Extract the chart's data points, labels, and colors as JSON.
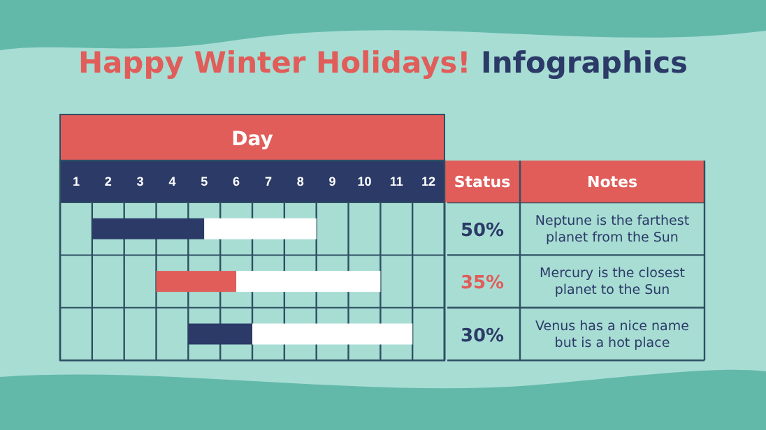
{
  "chart_data": {
    "type": "bar",
    "orientation": "horizontal",
    "title": "Happy Winter Holidays!",
    "subtitle": "Infographics",
    "xlabel": "Day",
    "categories": [
      null,
      null,
      null
    ],
    "series": [
      {
        "colors": [
          "#2b3a67",
          "#e05d5a",
          "#2b3a67"
        ],
        "base": [
          1,
          3,
          4
        ],
        "values": [
          3.5,
          2.5,
          2
        ]
      },
      {
        "color": "#ffffff",
        "base": [
          4.5,
          5.5,
          6
        ],
        "values": [
          3.5,
          4.5,
          5
        ]
      }
    ],
    "xlim": [
      0,
      12
    ],
    "xticks": [
      {
        "value": 0,
        "label": null
      },
      {
        "value": 0.5,
        "label": "1"
      },
      {
        "value": 1,
        "label": null
      },
      {
        "value": 1.5,
        "label": "2"
      },
      {
        "value": 2,
        "label": null
      },
      {
        "value": 2.5,
        "label": "3"
      },
      {
        "value": 3,
        "label": null
      },
      {
        "value": 3.5,
        "label": "4"
      },
      {
        "value": 4,
        "label": null
      },
      {
        "value": 4.5,
        "label": "5"
      },
      {
        "value": 5,
        "label": null
      },
      {
        "value": 5.5,
        "label": "6"
      },
      {
        "value": 6,
        "label": null
      },
      {
        "value": 6.5,
        "label": "7"
      },
      {
        "value": 7,
        "label": null
      },
      {
        "value": 7.5,
        "label": "8"
      },
      {
        "value": 8,
        "label": null
      },
      {
        "value": 8.5,
        "label": "9"
      },
      {
        "value": 9,
        "label": null
      },
      {
        "value": 9.5,
        "label": "10"
      },
      {
        "value": 10,
        "label": null
      },
      {
        "value": 10.5,
        "label": "11"
      },
      {
        "value": 11,
        "label": null
      },
      {
        "value": 11.5,
        "label": "12"
      },
      {
        "value": 12,
        "label": null
      }
    ],
    "grid": "x",
    "annotations": [
      "Status",
      "Notes",
      "50%",
      "Neptune is the farthest planet from the Sun",
      "35%",
      "Mercury is the closest planet to the Sun",
      "30%",
      "Venus has a nice name but is a hot place"
    ]
  }
}
